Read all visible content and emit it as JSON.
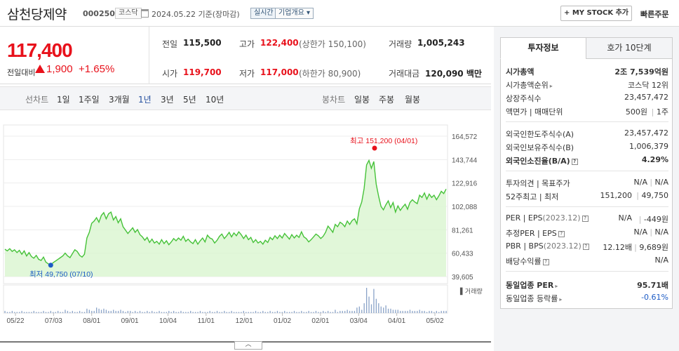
{
  "header": {
    "company_name": "삼천당제약",
    "stock_code": "000250",
    "market": "코스닥",
    "base_date": "2024.05.22  기준(장마감)",
    "realtime_label": "실시간",
    "company_overview_label": "기업개요 ▾",
    "mystock_label": "+ MY STOCK 추가",
    "quick_order_label": "빠른주문"
  },
  "price": {
    "current": "117,400",
    "change_label": "전일대비",
    "change_amount": "1,900",
    "change_rate": "+1.65%",
    "direction": "up",
    "up_color": "#e8111b"
  },
  "quotes": {
    "prev_close_label": "전일",
    "prev_close": "115,500",
    "high_label": "고가",
    "high": "122,400",
    "upper_limit": "(상한가 150,100)",
    "volume_label": "거래량",
    "volume": "1,005,243",
    "open_label": "시가",
    "open": "119,700",
    "low_label": "저가",
    "low": "117,000",
    "lower_limit": "(하한가 80,900)",
    "amount_label": "거래대금",
    "amount": "120,090 백만"
  },
  "period_tabs": {
    "line_chart_label": "선차트",
    "items": [
      "1일",
      "1주일",
      "3개월",
      "1년",
      "3년",
      "5년",
      "10년"
    ],
    "active": "1년",
    "candle_label": "봉차트",
    "candle_items": [
      "일봉",
      "주봉",
      "월봉"
    ]
  },
  "chart_data": {
    "type": "area",
    "y_ticks": [
      "164,572",
      "143,744",
      "122,916",
      "102,088",
      "81,261",
      "60,433",
      "39,605"
    ],
    "ylim": [
      39605,
      164572
    ],
    "x_labels": [
      "05/22",
      "07/03",
      "08/01",
      "09/01",
      "10/04",
      "11/01",
      "12/01",
      "01/02",
      "02/01",
      "03/04",
      "04/01",
      "05/02"
    ],
    "max_annotation": "최고 151,200 (04/01)",
    "min_annotation": "최저 49,750 (07/10)",
    "volume_legend": "▌거래량",
    "line_color": "#46c239",
    "fill_color": "#d9f5d0",
    "prices": [
      64000,
      62500,
      64500,
      62000,
      63500,
      61000,
      63000,
      59500,
      62500,
      58000,
      61000,
      57500,
      56000,
      58500,
      55000,
      54000,
      57000,
      52500,
      51000,
      49750,
      52000,
      53500,
      55000,
      56500,
      58000,
      60500,
      58000,
      56500,
      60000,
      63500,
      62000,
      58500,
      57000,
      59500,
      74000,
      79000,
      87000,
      89000,
      92000,
      88000,
      94000,
      96500,
      91000,
      95500,
      97000,
      90000,
      93000,
      87500,
      91000,
      84000,
      81000,
      78000,
      80500,
      83000,
      79000,
      81500,
      77000,
      75000,
      72000,
      74500,
      70000,
      73000,
      69500,
      71000,
      68500,
      72500,
      69000,
      71500,
      68000,
      70500,
      73500,
      71500,
      74000,
      72000,
      75500,
      71000,
      73000,
      70500,
      69000,
      72500,
      68500,
      71500,
      74000,
      70500,
      76500,
      74000,
      73000,
      69500,
      72000,
      75500,
      77500,
      73500,
      76000,
      79000,
      75000,
      78500,
      76000,
      79500,
      77000,
      73500,
      76500,
      72500,
      74500,
      70000,
      72500,
      69500,
      71000,
      68500,
      72000,
      70000,
      74500,
      72500,
      76000,
      73500,
      76500,
      74000,
      78000,
      75500,
      73000,
      77000,
      74000,
      76500,
      74500,
      79500,
      75000,
      73500,
      70500,
      72500,
      75000,
      77500,
      76000,
      73500,
      75500,
      79000,
      84500,
      82000,
      79000,
      86000,
      84000,
      88000,
      86500,
      84000,
      89000,
      86000,
      89500,
      91000,
      86500,
      100000,
      106000,
      118000,
      139000,
      143000,
      136000,
      142000,
      122000,
      111000,
      102000,
      99000,
      103500,
      107000,
      101000,
      105500,
      97000,
      102500,
      98500,
      101500,
      104000,
      99500,
      105500,
      108000,
      106000,
      104500,
      112000,
      110000,
      114000,
      108500,
      113000,
      110000,
      112000,
      108000,
      111500,
      115500,
      113500,
      117500
    ],
    "volumes": [
      2,
      1,
      1,
      2,
      1,
      1,
      1,
      2,
      1,
      1,
      1,
      1,
      2,
      1,
      1,
      1,
      2,
      1,
      1,
      2,
      1,
      1,
      2,
      1,
      1,
      3,
      2,
      1,
      2,
      1,
      1,
      2,
      1,
      1,
      4,
      3,
      2,
      2,
      5,
      4,
      3,
      4,
      3,
      2,
      2,
      3,
      2,
      2,
      3,
      2,
      1,
      2,
      2,
      1,
      2,
      1,
      2,
      1,
      1,
      2,
      1,
      2,
      1,
      1,
      2,
      1,
      1,
      1,
      2,
      1,
      2,
      1,
      1,
      2,
      1,
      1,
      1,
      2,
      1,
      1,
      1,
      2,
      1,
      1,
      1,
      2,
      1,
      1,
      2,
      1,
      1,
      2,
      1,
      1,
      2,
      1,
      1,
      1,
      1,
      2,
      1,
      1,
      1,
      1,
      2,
      1,
      1,
      2,
      1,
      1,
      2,
      1,
      1,
      2,
      1,
      1,
      2,
      1,
      1,
      1,
      2,
      1,
      1,
      2,
      1,
      1,
      2,
      1,
      1,
      2,
      1,
      1,
      2,
      1,
      2,
      1,
      1,
      3,
      1,
      2,
      2,
      2,
      3,
      2,
      2,
      2,
      5,
      6,
      3,
      9,
      23,
      15,
      8,
      22,
      13,
      9,
      6,
      5,
      7,
      4,
      4,
      3,
      3,
      3,
      2,
      2,
      2,
      2,
      3,
      2,
      2,
      2,
      3,
      2,
      2,
      1,
      2,
      2,
      1,
      2,
      1,
      2,
      2,
      2
    ]
  },
  "invest_panel": {
    "tab_invest": "투자정보",
    "tab_orderbook": "호가 10단계",
    "market_cap_label": "시가총액",
    "market_cap": "2조 7,539억원",
    "market_cap_rank_label": "시가총액순위",
    "market_cap_rank": "코스닥 12위",
    "listed_shares_label": "상장주식수",
    "listed_shares": "23,457,472",
    "face_value_label": "액면가 | 매매단위",
    "face_value": "500원",
    "trade_unit": "1주",
    "foreign_limit_label": "외국인한도주식수(A)",
    "foreign_limit": "23,457,472",
    "foreign_holding_label": "외국인보유주식수(B)",
    "foreign_holding": "1,006,379",
    "foreign_ratio_label": "외국인소진율(B/A)",
    "foreign_ratio": "4.29%",
    "opinion_label": "투자의견 | 목표주가",
    "opinion": "N/A",
    "target_price": "N/A",
    "week52_label": "52주최고 | 최저",
    "week52_high": "151,200",
    "week52_low": "49,750",
    "per_label": "PER | EPS",
    "per_period": "(2023.12)",
    "per": "N/A",
    "eps": "-449원",
    "est_per_label": "추정PER | EPS",
    "est_per": "N/A",
    "est_eps": "N/A",
    "pbr_label": "PBR | BPS",
    "pbr_period": "(2023.12)",
    "pbr": "12.12배",
    "bps": "9,689원",
    "dividend_label": "배당수익률",
    "dividend": "N/A",
    "sector_per_label": "동일업종 PER",
    "sector_per": "95.71배",
    "sector_change_label": "동일업종 등락률",
    "sector_change": "-0.61%",
    "down_color": "#1c5bc5"
  },
  "collapse_label": "︿"
}
